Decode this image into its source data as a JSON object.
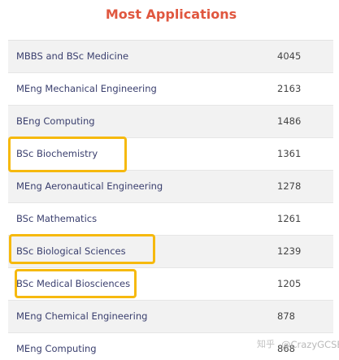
{
  "title": "Most Applications",
  "rows": [
    {
      "name": "MBBS and BSc Medicine",
      "value": "4045"
    },
    {
      "name": "MEng Mechanical Engineering",
      "value": "2163"
    },
    {
      "name": "BEng Computing",
      "value": "1486"
    },
    {
      "name": "BSc Biochemistry",
      "value": "1361"
    },
    {
      "name": "MEng Aeronautical Engineering",
      "value": "1278"
    },
    {
      "name": "BSc Mathematics",
      "value": "1261"
    },
    {
      "name": "BSc Biological Sciences",
      "value": "1239"
    },
    {
      "name": "BSc Medical Biosciences",
      "value": "1205"
    },
    {
      "name": "MEng Chemical Engineering",
      "value": "878"
    },
    {
      "name": "MEng Computing",
      "value": "868"
    }
  ],
  "watermark": {
    "logo": "知乎",
    "handle": "@CrazyGCSE"
  },
  "colors": {
    "title": "#e0573f",
    "highlight": "#f6b90e",
    "row_alt": "#f2f2f2",
    "text": "#3a3f6e"
  }
}
